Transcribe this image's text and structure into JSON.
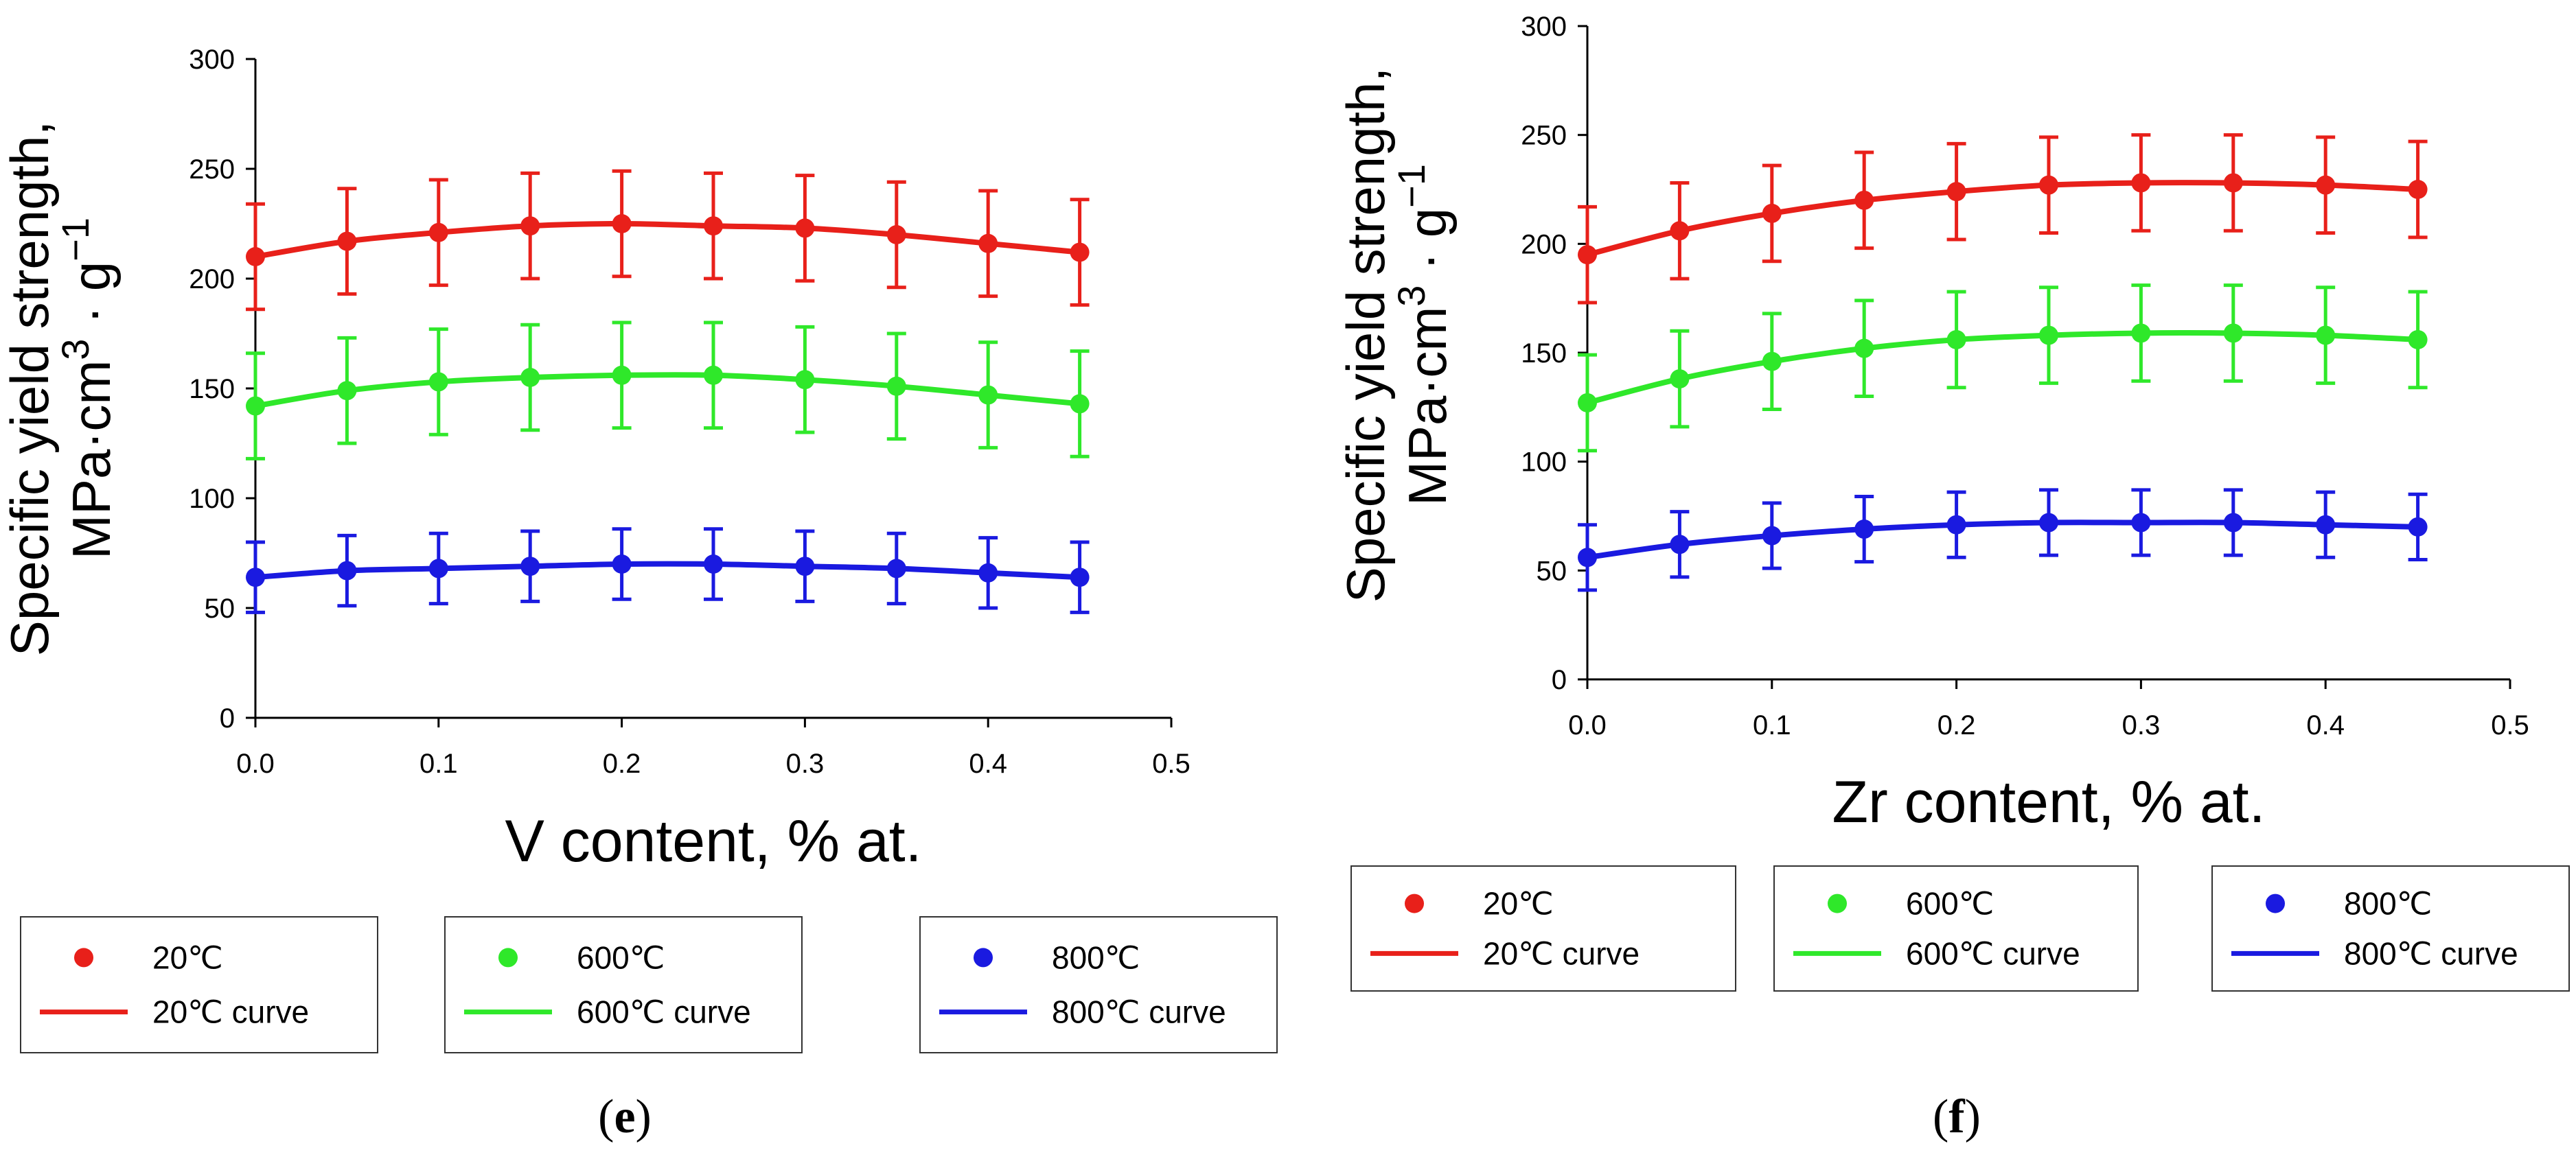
{
  "chart_data": [
    {
      "panel": "e",
      "type": "line",
      "xlabel": "V content, % at.",
      "ylabel_line1": "Specific yield strength,",
      "ylabel_line2_prefix": "MPa·cm",
      "ylabel_sup1": "3",
      "ylabel_line2_mid": " · g",
      "ylabel_sup2": "−1",
      "xlim": [
        0,
        0.5
      ],
      "ylim": [
        0,
        300
      ],
      "xticks": [
        "0.0",
        "0.1",
        "0.2",
        "0.3",
        "0.4",
        "0.5"
      ],
      "yticks": [
        "0",
        "50",
        "100",
        "150",
        "200",
        "250",
        "300"
      ],
      "x": [
        0,
        0.05,
        0.1,
        0.15,
        0.2,
        0.25,
        0.3,
        0.35,
        0.4,
        0.45
      ],
      "series": [
        {
          "name": "20℃",
          "curve_name": "20℃ curve",
          "color": "#e8201a",
          "values": [
            210,
            217,
            221,
            224,
            225,
            224,
            223,
            220,
            216,
            212
          ],
          "error": 24
        },
        {
          "name": "600℃",
          "curve_name": "600℃ curve",
          "color": "#2fe82a",
          "values": [
            142,
            149,
            153,
            155,
            156,
            156,
            154,
            151,
            147,
            143
          ],
          "error": 24
        },
        {
          "name": "800℃",
          "curve_name": "800℃ curve",
          "color": "#1a1ae0",
          "values": [
            64,
            67,
            68,
            69,
            70,
            70,
            69,
            68,
            66,
            64
          ],
          "error": 16
        }
      ],
      "caption_open": "(",
      "caption_letter": "e",
      "caption_close": ")"
    },
    {
      "panel": "f",
      "type": "line",
      "xlabel": "Zr content, % at.",
      "ylabel_line1": "Specific yield strength,",
      "ylabel_line2_prefix": "MPa·cm",
      "ylabel_sup1": "3",
      "ylabel_line2_mid": " · g",
      "ylabel_sup2": "−1",
      "xlim": [
        0,
        0.5
      ],
      "ylim": [
        0,
        300
      ],
      "xticks": [
        "0.0",
        "0.1",
        "0.2",
        "0.3",
        "0.4",
        "0.5"
      ],
      "yticks": [
        "0",
        "50",
        "100",
        "150",
        "200",
        "250",
        "300"
      ],
      "x": [
        0,
        0.05,
        0.1,
        0.15,
        0.2,
        0.25,
        0.3,
        0.35,
        0.4,
        0.45
      ],
      "series": [
        {
          "name": "20℃",
          "curve_name": "20℃ curve",
          "color": "#e8201a",
          "values": [
            195,
            206,
            214,
            220,
            224,
            227,
            228,
            228,
            227,
            225
          ],
          "error": 22
        },
        {
          "name": "600℃",
          "curve_name": "600℃ curve",
          "color": "#2fe82a",
          "values": [
            127,
            138,
            146,
            152,
            156,
            158,
            159,
            159,
            158,
            156
          ],
          "error": 22
        },
        {
          "name": "800℃",
          "curve_name": "800℃ curve",
          "color": "#1a1ae0",
          "values": [
            56,
            62,
            66,
            69,
            71,
            72,
            72,
            72,
            71,
            70
          ],
          "error": 15
        }
      ],
      "caption_open": "(",
      "caption_letter": "f",
      "caption_close": ")"
    }
  ]
}
